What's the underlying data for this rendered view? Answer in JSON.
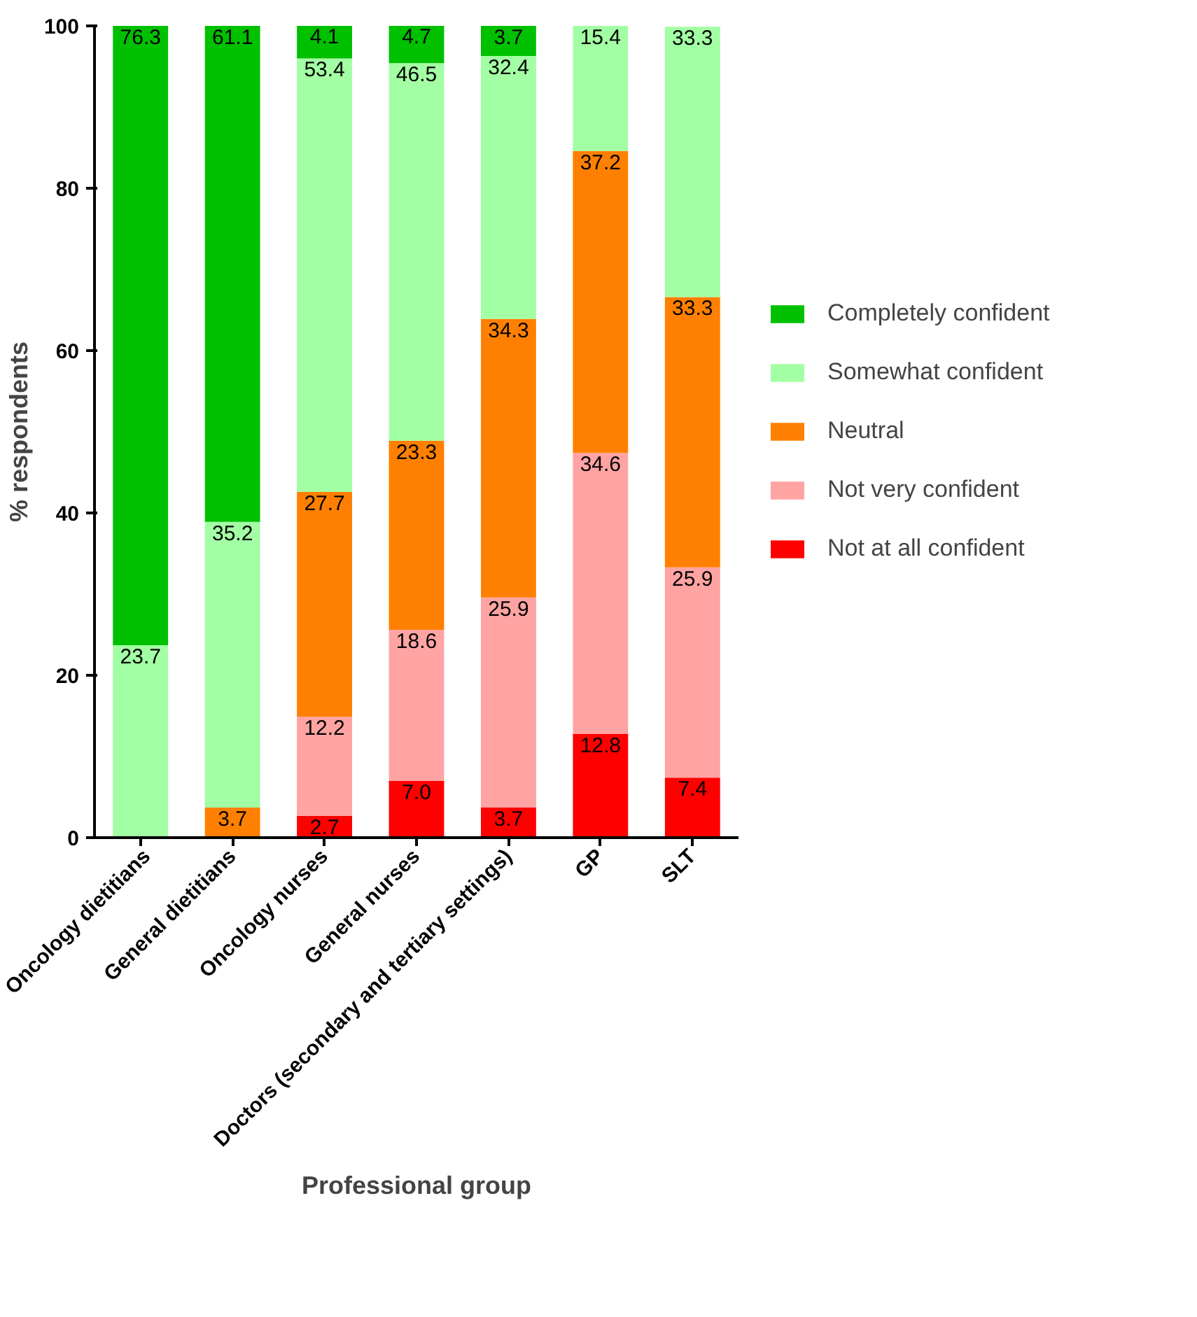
{
  "chart_data": {
    "type": "bar",
    "stacked": true,
    "xlabel": "Professional group",
    "ylabel": "% respondents",
    "categories": [
      "Oncology dietitians",
      "General dietitians",
      "Oncology nurses",
      "General nurses",
      "Doctors (secondary and tertiary settings)",
      "GP",
      "SLT"
    ],
    "series": [
      {
        "name": "Not at all confident",
        "color": "#ff0000",
        "values": [
          0,
          0,
          2.7,
          7.0,
          3.7,
          12.8,
          7.4
        ],
        "value_labels": [
          null,
          null,
          "2.7",
          "7.0",
          "3.7",
          "12.8",
          "7.4"
        ]
      },
      {
        "name": "Not very confident",
        "color": "#ffa3a3",
        "values": [
          0,
          0,
          12.2,
          18.6,
          25.9,
          34.6,
          25.9
        ],
        "value_labels": [
          null,
          null,
          "12.2",
          "18.6",
          "25.9",
          "34.6",
          "25.9"
        ]
      },
      {
        "name": "Neutral",
        "color": "#ff8000",
        "values": [
          0,
          3.7,
          27.7,
          23.3,
          34.3,
          37.2,
          33.3
        ],
        "value_labels": [
          null,
          "3.7",
          "27.7",
          "23.3",
          "34.3",
          "37.2",
          "33.3"
        ]
      },
      {
        "name": "Somewhat confident",
        "color": "#a3ffa3",
        "values": [
          23.7,
          35.2,
          53.4,
          46.5,
          32.4,
          15.4,
          33.3
        ],
        "value_labels": [
          "23.7",
          "35.2",
          "53.4",
          "46.5",
          "32.4",
          "15.4",
          "33.3"
        ]
      },
      {
        "name": "Completely confident",
        "color": "#00c000",
        "values": [
          76.3,
          61.1,
          4.1,
          4.7,
          3.7,
          0,
          0
        ],
        "value_labels": [
          "76.3",
          "61.1",
          "4.1",
          "4.7",
          "3.7",
          null,
          null
        ]
      }
    ],
    "ylim": [
      0,
      100
    ],
    "yticks": [
      0,
      20,
      40,
      60,
      80,
      100
    ],
    "grid": false,
    "legend": "right"
  }
}
